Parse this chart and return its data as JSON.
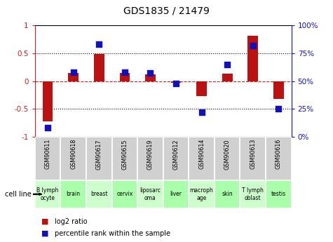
{
  "title": "GDS1835 / 21479",
  "gsm_labels": [
    "GSM90611",
    "GSM90618",
    "GSM90617",
    "GSM90615",
    "GSM90619",
    "GSM90612",
    "GSM90614",
    "GSM90620",
    "GSM90613",
    "GSM90616"
  ],
  "cell_lines": [
    "B lymph\nocyte",
    "brain",
    "breast",
    "cervix",
    "liposarc\noma",
    "liver",
    "macroph\nage",
    "skin",
    "T lymph\noblast",
    "testis"
  ],
  "cell_line_colors": [
    "#ccffcc",
    "#aaffaa",
    "#ccffcc",
    "#aaffaa",
    "#ccffcc",
    "#aaffaa",
    "#ccffcc",
    "#aaffaa",
    "#ccffcc",
    "#aaffaa"
  ],
  "log2_ratios": [
    -0.72,
    0.15,
    0.49,
    0.15,
    0.12,
    -0.03,
    -0.27,
    0.13,
    0.82,
    -0.32
  ],
  "percentile_ranks": [
    8,
    58,
    83,
    58,
    57,
    48,
    22,
    65,
    82,
    25
  ],
  "bar_color": "#bb1111",
  "dot_color": "#1111bb",
  "ylim_left": [
    -1,
    1
  ],
  "ylim_right": [
    0,
    100
  ],
  "yticks_left": [
    -1,
    -0.5,
    0,
    0.5,
    1
  ],
  "ytick_labels_left": [
    "-1",
    "-0.5",
    "0",
    "0.5",
    "1"
  ],
  "yticks_right": [
    0,
    25,
    50,
    75,
    100
  ],
  "ytick_labels_right": [
    "0%",
    "25%",
    "50%",
    "75%",
    "100%"
  ],
  "legend_ratio_label": "log2 ratio",
  "legend_pct_label": "percentile rank within the sample",
  "cell_line_label": "cell line",
  "bar_width": 0.4,
  "dot_size": 30,
  "gsm_box_color": "#d0d0d0",
  "title_fontsize": 10,
  "tick_fontsize": 7.5,
  "label_fontsize": 6.5
}
